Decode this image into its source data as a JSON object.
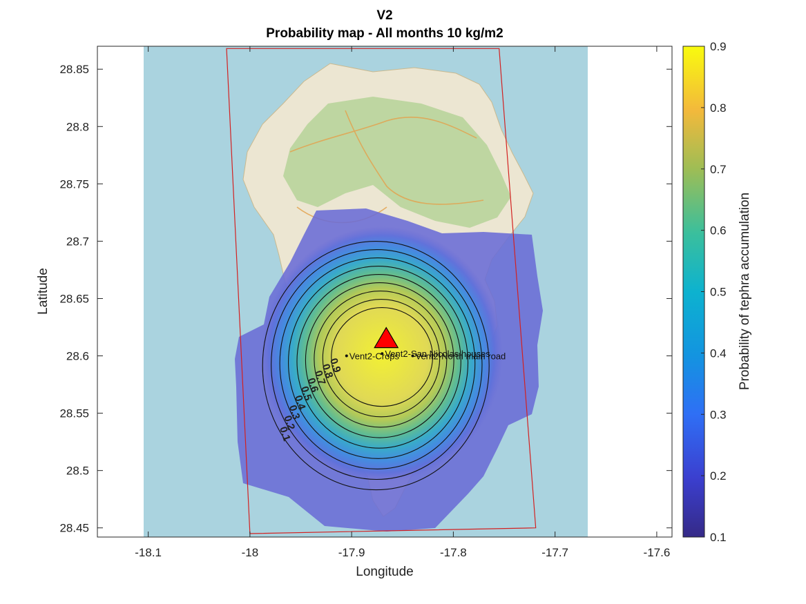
{
  "title_line1": "V2",
  "title_line2": "Probability map - All months 10 kg/m2",
  "xlabel": "Longitude",
  "ylabel": "Latitude",
  "colorbar_label": "Probability of tephra accumulation",
  "colors": {
    "sea": "#aad3df",
    "land": "#e8e3cf",
    "forest": "#b5d29a",
    "ash_low": "#6a6cd6",
    "vent_marker": "#ff0000",
    "domain_box": "#d32020"
  },
  "chart_data": {
    "type": "heatmap",
    "xlim": [
      -18.15,
      -17.585
    ],
    "ylim": [
      28.442,
      28.87
    ],
    "x_ticks": [
      -18.1,
      -18,
      -17.9,
      -17.8,
      -17.7,
      -17.6
    ],
    "x_tick_labels": [
      "-18.1",
      "-18",
      "-17.9",
      "-17.8",
      "-17.7",
      "-17.6"
    ],
    "y_ticks": [
      28.45,
      28.5,
      28.55,
      28.6,
      28.65,
      28.7,
      28.75,
      28.8,
      28.85
    ],
    "y_tick_labels": [
      "28.45",
      "28.5",
      "28.55",
      "28.6",
      "28.65",
      "28.7",
      "28.75",
      "28.8",
      "28.85"
    ],
    "colorbar_range": [
      0.1,
      0.9
    ],
    "colorbar_ticks": [
      0.1,
      0.2,
      0.3,
      0.4,
      0.5,
      0.6,
      0.7,
      0.8,
      0.9
    ],
    "colorbar_tick_labels": [
      "0.1",
      "0.2",
      "0.3",
      "0.4",
      "0.5",
      "0.6",
      "0.7",
      "0.8",
      "0.9"
    ],
    "colormap": "parula",
    "vent": {
      "lon": -17.866,
      "lat": 28.615
    },
    "contours": [
      {
        "level": 0.1,
        "label": "0.1"
      },
      {
        "level": 0.2,
        "label": "0.2"
      },
      {
        "level": 0.3,
        "label": "0.3"
      },
      {
        "level": 0.4,
        "label": "0.4"
      },
      {
        "level": 0.5,
        "label": "0.5"
      },
      {
        "level": 0.6,
        "label": "0.6"
      },
      {
        "level": 0.7,
        "label": "0.7"
      },
      {
        "level": 0.8,
        "label": "0.8"
      },
      {
        "level": 0.9,
        "label": "0.9"
      }
    ],
    "points": [
      {
        "label": "Vent2-Crops",
        "lon": -17.905,
        "lat": 28.6
      },
      {
        "label": "Vent2-San Nicolas houses",
        "lon": -17.87,
        "lat": 28.602
      },
      {
        "label": "Vent2-North main road",
        "lon": -17.84,
        "lat": 28.6
      }
    ],
    "domain_box": [
      {
        "lon": -18.023,
        "lat": 28.868
      },
      {
        "lon": -17.755,
        "lat": 28.868
      },
      {
        "lon": -17.719,
        "lat": 28.45
      },
      {
        "lon": -18.0,
        "lat": 28.445
      }
    ]
  }
}
